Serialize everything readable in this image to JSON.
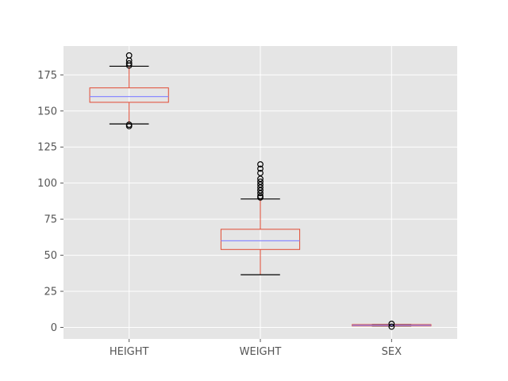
{
  "chart_data": {
    "type": "box",
    "title": "",
    "xlabel": "",
    "ylabel": "",
    "categories": [
      "HEIGHT",
      "WEIGHT",
      "SEX"
    ],
    "ylim": [
      -8,
      195
    ],
    "yticks": [
      0,
      25,
      50,
      75,
      100,
      125,
      150,
      175
    ],
    "grid": true,
    "boxes": [
      {
        "name": "HEIGHT",
        "whisker_low": 141,
        "q1": 156,
        "median": 160,
        "q3": 166,
        "whisker_high": 181,
        "outliers": [
          139.5,
          140.5,
          181.5,
          183,
          185,
          188.5
        ]
      },
      {
        "name": "WEIGHT",
        "whisker_low": 36.5,
        "q1": 54,
        "median": 60,
        "q3": 68,
        "whisker_high": 89,
        "outliers": [
          90,
          91,
          93,
          95,
          97,
          99,
          101,
          103,
          107,
          110,
          113
        ]
      },
      {
        "name": "SEX",
        "whisker_low": 1,
        "q1": 1,
        "median": 1.5,
        "q3": 2,
        "whisker_high": 2,
        "outliers": [
          0.5,
          2.5
        ]
      }
    ],
    "colors": {
      "background": "#e5e5e5",
      "grid": "#ffffff",
      "box": "#e24a33",
      "median": "#8b8bff",
      "outlier": "#000000",
      "cap": "#000000"
    }
  }
}
